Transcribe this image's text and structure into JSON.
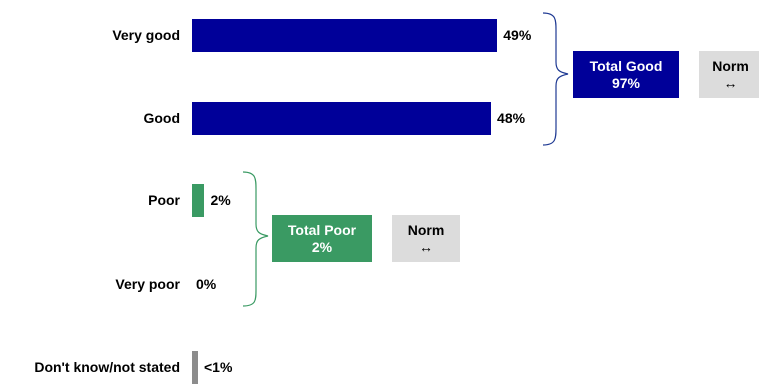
{
  "chart_data": {
    "type": "bar",
    "orientation": "horizontal",
    "categories": [
      "Very good",
      "Good",
      "Poor",
      "Very poor",
      "Don't know/not stated"
    ],
    "values": [
      49,
      48,
      2,
      0,
      0.5
    ],
    "value_labels": [
      "49%",
      "48%",
      "2%",
      "0%",
      "<1%"
    ],
    "colors": [
      "#000099",
      "#000099",
      "#3a9a63",
      "#3a9a63",
      "#8c8c8c"
    ],
    "xlim": [
      0,
      100
    ],
    "title": "",
    "xlabel": "",
    "ylabel": "",
    "grid": false,
    "groups": [
      {
        "label_line1": "Total Good",
        "label_line2": "97%",
        "color": "#000099",
        "norm_line1": "Norm",
        "norm_line2": "↔"
      },
      {
        "label_line1": "Total Poor",
        "label_line2": "2%",
        "color": "#3a9a63",
        "norm_line1": "Norm",
        "norm_line2": "↔"
      }
    ]
  }
}
